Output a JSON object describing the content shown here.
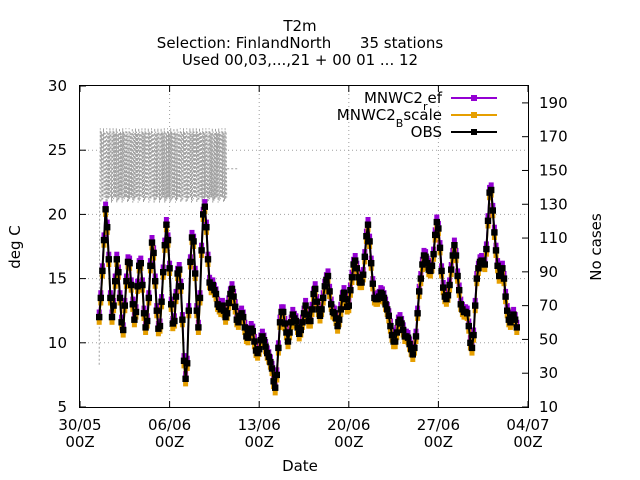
{
  "chart_data": {
    "type": "line",
    "title": [
      "T2m",
      "Selection: FinlandNorth      35 stations",
      "Used 00,03,...,21 + 00 01 ... 12"
    ],
    "xlabel": "Date",
    "ylabel": "deg C",
    "y2label": "No cases",
    "xlim": [
      "2018-05-30 00:00",
      "2018-07-04 00:00"
    ],
    "ylim": [
      5,
      30
    ],
    "y2lim": [
      10,
      200
    ],
    "xticks": [
      {
        "line1": "30/05",
        "line2": "00Z"
      },
      {
        "line1": "06/06",
        "line2": "00Z"
      },
      {
        "line1": "13/06",
        "line2": "00Z"
      },
      {
        "line1": "20/06",
        "line2": "00Z"
      },
      {
        "line1": "27/06",
        "line2": "00Z"
      },
      {
        "line1": "04/07",
        "line2": "00Z"
      }
    ],
    "yticks": [
      "5",
      "10",
      "15",
      "20",
      "25",
      "30"
    ],
    "y2ticks": [
      "10",
      "30",
      "50",
      "70",
      "90",
      "110",
      "130",
      "150",
      "170",
      "190"
    ],
    "grid": true,
    "legend_position": "top-right",
    "x_start": "2018-05-31 12:00",
    "x_step_hours": 3,
    "series": [
      {
        "name": "MNWC2_ref",
        "name_main": "MNWC2",
        "name_sub": "r",
        "name_tail": "ef",
        "color": "#9400d3",
        "values": [
          12.0,
          13.5,
          15.6,
          18.0,
          20.4,
          19.0,
          16.5,
          13.5,
          12.0,
          12.9,
          14.8,
          16.5,
          15.5,
          13.5,
          11.6,
          11.0,
          12.9,
          14.8,
          16.3,
          16.2,
          14.5,
          13.0,
          11.8,
          12.4,
          14.4,
          16.0,
          16.2,
          14.5,
          12.3,
          11.2,
          11.7,
          13.5,
          16.0,
          17.8,
          17.0,
          14.8,
          12.5,
          11.1,
          11.3,
          13.2,
          15.5,
          17.6,
          19.2,
          18.0,
          15.8,
          13.0,
          11.5,
          11.7,
          13.6,
          15.4,
          15.7,
          14.4,
          11.8,
          8.6,
          7.2,
          8.4,
          12.5,
          16.3,
          18.2,
          17.9,
          15.4,
          12.5,
          11.2,
          13.5,
          17.2,
          20.0,
          20.6,
          19.0,
          16.5,
          14.7,
          14.3,
          14.5,
          14.1,
          13.8,
          13.0,
          12.8,
          12.6,
          12.9,
          12.5,
          12.0,
          12.3,
          13.1,
          13.8,
          14.2,
          13.6,
          12.8,
          11.8,
          11.6,
          12.1,
          12.3,
          12.0,
          11.2,
          10.5,
          10.4,
          10.8,
          11.1,
          10.9,
          10.1,
          9.4,
          9.2,
          9.5,
          10.2,
          10.5,
          10.2,
          9.7,
          9.2,
          8.9,
          8.5,
          8.0,
          7.0,
          6.5,
          7.5,
          9.6,
          11.6,
          12.4,
          12.4,
          11.5,
          10.8,
          10.1,
          10.8,
          11.6,
          12.2,
          11.9,
          11.7,
          11.2,
          10.7,
          11.0,
          11.6,
          12.3,
          12.9,
          12.2,
          11.7,
          11.7,
          12.6,
          13.8,
          14.2,
          13.2,
          12.6,
          12.1,
          12.6,
          13.5,
          14.4,
          14.9,
          15.2,
          14.0,
          13.0,
          12.4,
          12.3,
          11.9,
          11.3,
          11.8,
          12.6,
          13.5,
          13.9,
          13.4,
          12.8,
          12.9,
          14.1,
          15.1,
          16.1,
          16.4,
          15.8,
          15.1,
          14.7,
          14.7,
          15.3,
          16.7,
          18.3,
          19.2,
          17.9,
          16.2,
          14.6,
          13.5,
          13.4,
          13.4,
          13.6,
          13.9,
          13.8,
          13.5,
          13.0,
          12.6,
          12.1,
          11.3,
          10.6,
          10.1,
          10.1,
          10.8,
          11.6,
          11.8,
          11.5,
          11.0,
          10.5,
          10.5,
          10.4,
          9.9,
          9.5,
          9.1,
          9.6,
          10.5,
          12.3,
          14.0,
          15.0,
          16.1,
          16.8,
          16.7,
          16.2,
          15.7,
          15.6,
          16.0,
          16.9,
          18.4,
          19.4,
          18.9,
          17.4,
          15.6,
          14.3,
          13.6,
          13.4,
          13.7,
          14.5,
          15.7,
          16.8,
          17.6,
          16.8,
          15.2,
          14.1,
          13.0,
          12.6,
          12.4,
          12.4,
          12.3,
          11.3,
          10.0,
          9.6,
          10.6,
          12.9,
          15.0,
          15.8,
          16.3,
          16.4,
          16.2,
          16.1,
          17.3,
          19.5,
          21.7,
          21.9,
          20.3,
          18.6,
          17.2,
          16.0,
          15.2,
          15.5,
          15.8,
          15.0,
          13.6,
          12.5,
          11.8,
          11.6,
          12.0,
          12.2,
          11.8,
          11.2
        ]
      },
      {
        "name": "MNWC2_Bscale",
        "name_main": "MNWC2",
        "name_sub": "B",
        "name_tail": "scale",
        "color": "#e69f00",
        "values": [
          12.0,
          13.5,
          15.6,
          18.0,
          20.4,
          19.0,
          16.5,
          13.5,
          12.0,
          12.9,
          14.8,
          16.5,
          15.5,
          13.5,
          11.6,
          11.0,
          12.9,
          14.8,
          16.3,
          16.2,
          14.5,
          13.0,
          11.8,
          12.4,
          14.4,
          16.0,
          16.2,
          14.5,
          12.3,
          11.2,
          11.7,
          13.5,
          16.0,
          17.8,
          17.0,
          14.8,
          12.5,
          11.1,
          11.3,
          13.2,
          15.5,
          17.6,
          19.2,
          18.0,
          15.8,
          13.0,
          11.5,
          11.7,
          13.6,
          15.4,
          15.7,
          14.4,
          11.8,
          8.6,
          7.2,
          8.4,
          12.5,
          16.3,
          18.2,
          17.9,
          15.4,
          12.5,
          11.2,
          13.5,
          17.2,
          20.0,
          20.6,
          19.0,
          16.5,
          14.7,
          14.3,
          14.5,
          14.1,
          13.8,
          13.0,
          12.8,
          12.6,
          12.9,
          12.5,
          12.0,
          12.3,
          13.1,
          13.8,
          14.2,
          13.6,
          12.8,
          11.8,
          11.6,
          12.1,
          12.3,
          12.0,
          11.2,
          10.5,
          10.4,
          10.8,
          11.1,
          10.9,
          10.1,
          9.4,
          9.2,
          9.5,
          10.2,
          10.5,
          10.2,
          9.7,
          9.2,
          8.9,
          8.5,
          8.0,
          7.0,
          6.5,
          7.5,
          9.6,
          11.6,
          12.4,
          12.4,
          11.5,
          10.8,
          10.1,
          10.8,
          11.6,
          12.2,
          11.9,
          11.7,
          11.2,
          10.7,
          11.0,
          11.6,
          12.3,
          12.9,
          12.2,
          11.7,
          11.7,
          12.6,
          13.8,
          14.2,
          13.2,
          12.6,
          12.1,
          12.6,
          13.5,
          14.4,
          14.9,
          15.2,
          14.0,
          13.0,
          12.4,
          12.3,
          11.9,
          11.3,
          11.8,
          12.6,
          13.5,
          13.9,
          13.4,
          12.8,
          12.9,
          14.1,
          15.1,
          16.1,
          16.4,
          15.8,
          15.1,
          14.7,
          14.7,
          15.3,
          16.7,
          18.3,
          19.2,
          17.9,
          16.2,
          14.6,
          13.5,
          13.4,
          13.4,
          13.6,
          13.9,
          13.8,
          13.5,
          13.0,
          12.6,
          12.1,
          11.3,
          10.6,
          10.1,
          10.1,
          10.8,
          11.6,
          11.8,
          11.5,
          11.0,
          10.5,
          10.5,
          10.4,
          9.9,
          9.5,
          9.1,
          9.6,
          10.5,
          12.3,
          14.0,
          15.0,
          16.1,
          16.8,
          16.7,
          16.2,
          15.7,
          15.6,
          16.0,
          16.9,
          18.4,
          19.4,
          18.9,
          17.4,
          15.6,
          14.3,
          13.6,
          13.4,
          13.7,
          14.5,
          15.7,
          16.8,
          17.6,
          16.8,
          15.2,
          14.1,
          13.0,
          12.6,
          12.4,
          12.4,
          12.3,
          11.3,
          10.0,
          9.6,
          10.6,
          12.9,
          15.0,
          15.8,
          16.3,
          16.4,
          16.2,
          16.1,
          17.3,
          19.5,
          21.7,
          21.9,
          20.3,
          18.6,
          17.2,
          16.0,
          15.2,
          15.5,
          15.8,
          15.0,
          13.6,
          12.5,
          11.8,
          11.6,
          12.0,
          12.2,
          11.8,
          11.2
        ]
      },
      {
        "name": "OBS",
        "color": "#000000",
        "values": [
          12.0,
          13.5,
          15.6,
          18.0,
          20.4,
          19.0,
          16.5,
          13.5,
          12.0,
          12.9,
          14.8,
          16.5,
          15.5,
          13.5,
          11.6,
          11.0,
          12.9,
          14.8,
          16.3,
          16.2,
          14.5,
          13.0,
          11.8,
          12.4,
          14.4,
          16.0,
          16.2,
          14.5,
          12.3,
          11.2,
          11.7,
          13.5,
          16.0,
          17.8,
          17.0,
          14.8,
          12.5,
          11.1,
          11.3,
          13.2,
          15.5,
          17.6,
          19.2,
          18.0,
          15.8,
          13.0,
          11.5,
          11.7,
          13.6,
          15.4,
          15.7,
          14.4,
          11.8,
          8.6,
          7.2,
          8.4,
          12.5,
          16.3,
          18.2,
          17.9,
          15.4,
          12.5,
          11.2,
          13.5,
          17.2,
          20.0,
          20.6,
          19.0,
          16.5,
          14.7,
          14.3,
          14.5,
          14.1,
          13.8,
          13.0,
          12.8,
          12.6,
          12.9,
          12.5,
          12.0,
          12.3,
          13.1,
          13.8,
          14.2,
          13.6,
          12.8,
          11.8,
          11.6,
          12.1,
          12.3,
          12.0,
          11.2,
          10.5,
          10.4,
          10.8,
          11.1,
          10.9,
          10.1,
          9.4,
          9.2,
          9.5,
          10.2,
          10.5,
          10.2,
          9.7,
          9.2,
          8.9,
          8.5,
          8.0,
          7.0,
          6.5,
          7.5,
          9.6,
          11.6,
          12.4,
          12.4,
          11.5,
          10.8,
          10.1,
          10.8,
          11.6,
          12.2,
          11.9,
          11.7,
          11.2,
          10.7,
          11.0,
          11.6,
          12.3,
          12.9,
          12.2,
          11.7,
          11.7,
          12.6,
          13.8,
          14.2,
          13.2,
          12.6,
          12.1,
          12.6,
          13.5,
          14.4,
          14.9,
          15.2,
          14.0,
          13.0,
          12.4,
          12.3,
          11.9,
          11.3,
          11.8,
          12.6,
          13.5,
          13.9,
          13.4,
          12.8,
          12.9,
          14.1,
          15.1,
          16.1,
          16.4,
          15.8,
          15.1,
          14.7,
          14.7,
          15.3,
          16.7,
          18.3,
          19.2,
          17.9,
          16.2,
          14.6,
          13.5,
          13.4,
          13.4,
          13.6,
          13.9,
          13.8,
          13.5,
          13.0,
          12.6,
          12.1,
          11.3,
          10.6,
          10.1,
          10.1,
          10.8,
          11.6,
          11.8,
          11.5,
          11.0,
          10.5,
          10.5,
          10.4,
          9.9,
          9.5,
          9.1,
          9.6,
          10.5,
          12.3,
          14.0,
          15.0,
          16.1,
          16.8,
          16.7,
          16.2,
          15.7,
          15.6,
          16.0,
          16.9,
          18.4,
          19.4,
          18.9,
          17.4,
          15.6,
          14.3,
          13.6,
          13.4,
          13.7,
          14.5,
          15.7,
          16.8,
          17.6,
          16.8,
          15.2,
          14.1,
          13.0,
          12.6,
          12.4,
          12.4,
          12.3,
          11.3,
          10.0,
          9.6,
          10.6,
          12.9,
          15.0,
          15.8,
          16.3,
          16.4,
          16.2,
          16.1,
          17.3,
          19.5,
          21.7,
          21.9,
          20.3,
          18.6,
          17.2,
          16.0,
          15.2,
          15.5,
          15.8,
          15.0,
          13.6,
          12.5,
          11.8,
          11.6,
          12.0,
          12.2,
          11.8,
          11.2
        ]
      }
    ],
    "cases_series": {
      "axis": "y2",
      "style": "dotted",
      "color": "#a0a0a0",
      "x_start": "2018-05-31 12:00",
      "x_step_hours": 1,
      "low_values": [
        35,
        132,
        134,
        133,
        131,
        134
      ],
      "high_values": [
        172,
        170,
        175,
        171,
        173,
        170
      ],
      "end_values": [
        151,
        151
      ]
    }
  }
}
